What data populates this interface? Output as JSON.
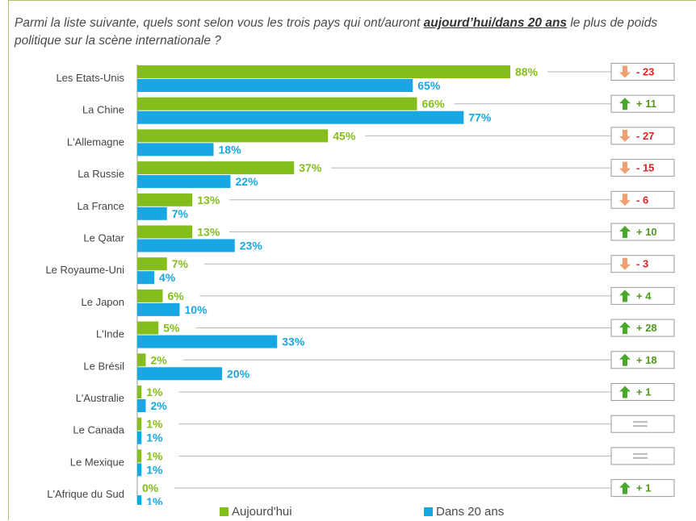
{
  "title": {
    "before": "Parmi la liste suivante, quels sont selon vous les trois pays qui ont/auront ",
    "highlight": "aujourd’hui/dans 20 ans",
    "after": " le plus de poids politique sur la scène internationale ?"
  },
  "colors": {
    "today": "#84bd1c",
    "future": "#17a7e3",
    "up_arrow": "#49a82b",
    "down_arrow": "#f0a070",
    "pos_text": "#4f9a1e",
    "neg_text": "#e02020",
    "equal": "#b8b8b8"
  },
  "chart_data": {
    "type": "bar",
    "orientation": "horizontal",
    "categories": [
      "Les Etats-Unis",
      "La Chine",
      "L'Allemagne",
      "La Russie",
      "La France",
      "Le Qatar",
      "Le Royaume-Uni",
      "Le Japon",
      "L'Inde",
      "Le Brésil",
      "L'Australie",
      "Le Canada",
      "Le Mexique",
      "L'Afrique du Sud"
    ],
    "series": [
      {
        "name": "Aujourd'hui",
        "values": [
          88,
          66,
          45,
          37,
          13,
          13,
          7,
          6,
          5,
          2,
          1,
          1,
          1,
          0
        ],
        "labels": [
          "88%",
          "66%",
          "45%",
          "37%",
          "13%",
          "13%",
          "7%",
          "6%",
          "5%",
          "2%",
          "1%",
          "1%",
          "1%",
          "0%"
        ]
      },
      {
        "name": "Dans 20 ans",
        "values": [
          65,
          77,
          18,
          22,
          7,
          23,
          4,
          10,
          33,
          20,
          2,
          1,
          1,
          1
        ],
        "labels": [
          "65%",
          "77%",
          "18%",
          "22%",
          "7%",
          "23%",
          "4%",
          "10%",
          "33%",
          "20%",
          "2%",
          "1%",
          "1%",
          "1%"
        ]
      }
    ],
    "changes": [
      {
        "dir": "down",
        "text": "- 23"
      },
      {
        "dir": "up",
        "text": "+ 11"
      },
      {
        "dir": "down",
        "text": "- 27"
      },
      {
        "dir": "down",
        "text": "- 15"
      },
      {
        "dir": "down",
        "text": "- 6"
      },
      {
        "dir": "up",
        "text": "+ 10"
      },
      {
        "dir": "down",
        "text": "- 3"
      },
      {
        "dir": "up",
        "text": "+ 4"
      },
      {
        "dir": "up",
        "text": "+ 28"
      },
      {
        "dir": "up",
        "text": "+ 18"
      },
      {
        "dir": "up",
        "text": "+ 1"
      },
      {
        "dir": "equal",
        "text": ""
      },
      {
        "dir": "equal",
        "text": ""
      },
      {
        "dir": "up",
        "text": "+ 1"
      }
    ],
    "legend_position": "bottom",
    "grid": false
  }
}
